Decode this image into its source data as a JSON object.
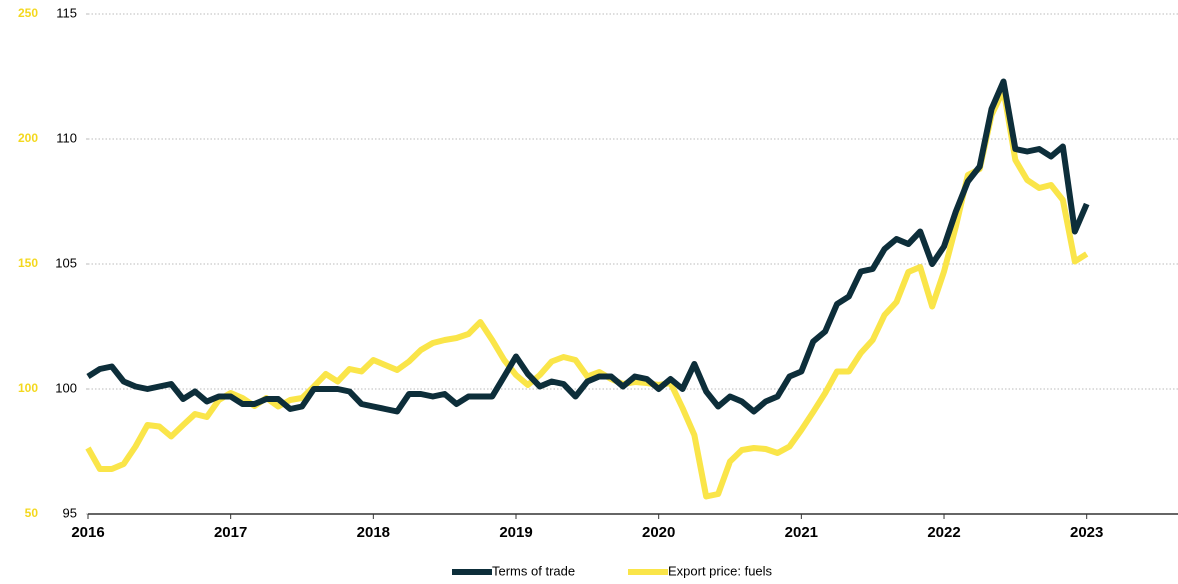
{
  "chart_data": {
    "type": "line",
    "x": [
      2016,
      2016.083,
      2016.167,
      2016.25,
      2016.333,
      2016.417,
      2016.5,
      2016.583,
      2016.667,
      2016.75,
      2016.833,
      2016.917,
      2017,
      2017.083,
      2017.167,
      2017.25,
      2017.333,
      2017.417,
      2017.5,
      2017.583,
      2017.667,
      2017.75,
      2017.833,
      2017.917,
      2018,
      2018.083,
      2018.167,
      2018.25,
      2018.333,
      2018.417,
      2018.5,
      2018.583,
      2018.667,
      2018.75,
      2018.833,
      2018.917,
      2019,
      2019.083,
      2019.167,
      2019.25,
      2019.333,
      2019.417,
      2019.5,
      2019.583,
      2019.667,
      2019.75,
      2019.833,
      2019.917,
      2020,
      2020.083,
      2020.167,
      2020.25,
      2020.333,
      2020.417,
      2020.5,
      2020.583,
      2020.667,
      2020.75,
      2020.833,
      2020.917,
      2021,
      2021.083,
      2021.167,
      2021.25,
      2021.333,
      2021.417,
      2021.5,
      2021.583,
      2021.667,
      2021.75,
      2021.833,
      2021.917,
      2022,
      2022.083,
      2022.167,
      2022.25,
      2022.333,
      2022.417,
      2022.5,
      2022.583,
      2022.667,
      2022.75,
      2022.833,
      2022.917,
      2023
    ],
    "series": [
      {
        "name": "Terms of trade",
        "color": "#0d2e3a",
        "values": [
          100.5,
          100.8,
          100.9,
          100.3,
          100.1,
          100.0,
          100.1,
          100.2,
          99.6,
          99.9,
          99.5,
          99.7,
          99.7,
          99.4,
          99.4,
          99.6,
          99.6,
          99.2,
          99.3,
          100.0,
          100.0,
          100.0,
          99.9,
          99.4,
          99.3,
          99.2,
          99.1,
          99.8,
          99.8,
          99.7,
          99.8,
          99.4,
          99.7,
          99.7,
          99.7,
          100.5,
          101.3,
          100.6,
          100.1,
          100.3,
          100.2,
          99.7,
          100.3,
          100.5,
          100.5,
          100.1,
          100.5,
          100.4,
          100.0,
          100.4,
          100.0,
          101.0,
          99.9,
          99.3,
          99.7,
          99.5,
          99.1,
          99.5,
          99.7,
          100.5,
          100.7,
          101.9,
          102.3,
          103.4,
          103.7,
          104.7,
          104.8,
          105.6,
          106.0,
          105.8,
          106.3,
          105.0,
          105.7,
          107.1,
          108.3,
          108.9,
          111.2,
          112.3,
          109.6,
          109.5,
          109.6,
          109.3,
          109.7,
          106.3,
          107.4
        ]
      },
      {
        "name": "Export price: fuels",
        "color": "#fae549",
        "axis": "y2",
        "values": [
          76.4,
          68,
          68,
          70,
          77,
          85.6,
          85,
          81,
          85.6,
          90,
          88.8,
          95.6,
          98.4,
          96.4,
          93.2,
          96.4,
          93,
          95.6,
          96.4,
          101,
          106,
          103,
          108,
          107,
          111.6,
          109.6,
          107.6,
          111,
          115.6,
          118.4,
          119.6,
          120.4,
          122,
          126.8,
          119.6,
          111.6,
          105.6,
          101.6,
          105.6,
          111,
          112.8,
          111.6,
          105,
          106.8,
          104,
          102,
          102.8,
          102.4,
          101.6,
          102.4,
          92.4,
          81.6,
          57,
          58,
          71,
          75.6,
          76.4,
          76,
          74.4,
          77,
          83.6,
          90.8,
          98.4,
          107,
          107,
          114.4,
          119.6,
          129.6,
          134.8,
          146.8,
          148.8,
          133,
          147,
          165,
          185.6,
          188,
          209.6,
          219.6,
          191.6,
          183.6,
          180.4,
          181.6,
          175.6,
          151,
          154
        ]
      }
    ],
    "xlim": [
      2016,
      2023.64
    ],
    "xticks": [
      2016,
      2017,
      2018,
      2019,
      2020,
      2021,
      2022,
      2023
    ],
    "ylim": [
      95,
      115
    ],
    "yticks": [
      95,
      100,
      105,
      110,
      115
    ],
    "y2lim": [
      50,
      250
    ],
    "y2ticks": [
      50,
      100,
      150,
      200,
      250
    ],
    "grid": true,
    "legend": "bottom"
  }
}
